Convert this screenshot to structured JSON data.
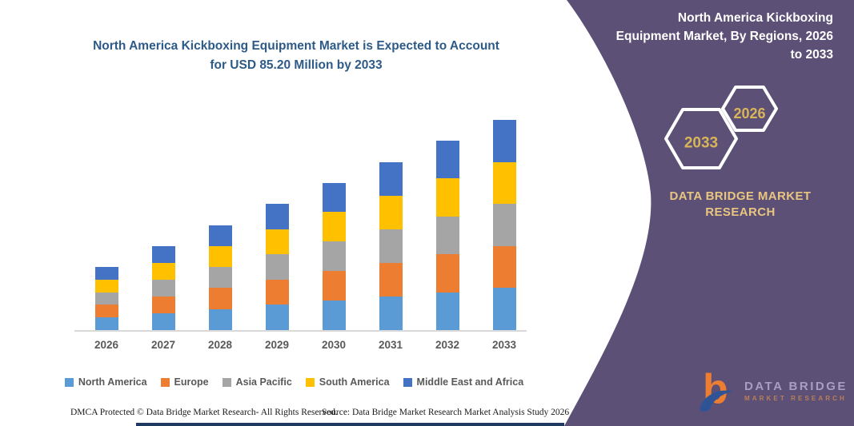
{
  "chart_panel": {
    "title": "North America Kickboxing Equipment Market is Expected to Account for USD 85.20 Million by 2033",
    "footer_left": "DMCA Protected © Data Bridge Market Research-  All Rights Reserved.",
    "footer_right": "Source: Data Bridge Market Research  Market Analysis Study 2026"
  },
  "chart_data": {
    "type": "bar",
    "stacked": true,
    "unit": "USD Million",
    "title": "North America Kickboxing Equipment Market is Expected to Account for USD 85.20 Million by 2033",
    "categories": [
      "2026",
      "2027",
      "2028",
      "2029",
      "2030",
      "2031",
      "2032",
      "2033"
    ],
    "series": [
      {
        "name": "North America",
        "color": "#5B9BD5",
        "values": [
          5.12,
          6.82,
          8.52,
          10.24,
          11.94,
          13.64,
          15.34,
          17.04
        ]
      },
      {
        "name": "Europe",
        "color": "#ED7D31",
        "values": [
          5.12,
          6.82,
          8.52,
          10.24,
          11.94,
          13.64,
          15.34,
          17.04
        ]
      },
      {
        "name": "Asia Pacific",
        "color": "#A5A5A5",
        "values": [
          5.12,
          6.82,
          8.52,
          10.24,
          11.94,
          13.64,
          15.34,
          17.04
        ]
      },
      {
        "name": "South America",
        "color": "#FFC000",
        "values": [
          5.12,
          6.82,
          8.52,
          10.24,
          11.94,
          13.64,
          15.34,
          17.04
        ]
      },
      {
        "name": "Middle East and Africa",
        "color": "#4472C4",
        "values": [
          5.12,
          6.82,
          8.52,
          10.24,
          11.94,
          13.64,
          15.34,
          17.04
        ]
      }
    ],
    "totals": [
      25.6,
      34.1,
      42.6,
      51.2,
      59.7,
      68.2,
      76.7,
      85.2
    ],
    "xlabel": "",
    "ylabel": "",
    "grid": false,
    "legend_position": "bottom"
  },
  "side_panel": {
    "title_lines": [
      "North America Kickboxing",
      "Equipment Market, By Regions, 2026",
      "to 2033"
    ],
    "hexagons": [
      {
        "label": "2033"
      },
      {
        "label": "2026"
      }
    ],
    "brand_line1": "DATA BRIDGE MARKET",
    "brand_line2": "RESEARCH",
    "logo_title": "DATA BRIDGE",
    "logo_subtitle": "MARKET RESEARCH",
    "colors": {
      "panel": "#5D5077",
      "hex_gold": "#D9B559",
      "brand_gold": "#E8C680",
      "bottom_bar_navy": "#1F3864"
    }
  }
}
